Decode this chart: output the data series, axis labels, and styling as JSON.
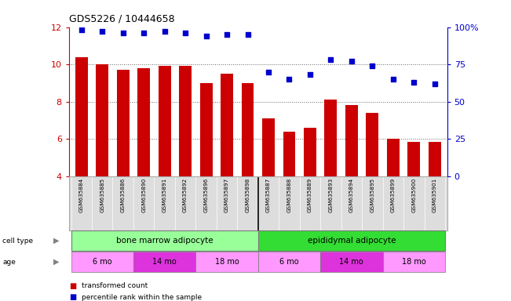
{
  "title": "GDS5226 / 10444658",
  "samples": [
    "GSM635884",
    "GSM635885",
    "GSM635886",
    "GSM635890",
    "GSM635891",
    "GSM635892",
    "GSM635896",
    "GSM635897",
    "GSM635898",
    "GSM635887",
    "GSM635888",
    "GSM635889",
    "GSM635893",
    "GSM635894",
    "GSM635895",
    "GSM635899",
    "GSM635900",
    "GSM635901"
  ],
  "bar_values": [
    10.4,
    10.0,
    9.7,
    9.8,
    9.9,
    9.9,
    9.0,
    9.5,
    9.0,
    7.1,
    6.4,
    6.6,
    8.1,
    7.8,
    7.4,
    6.0,
    5.85,
    5.85
  ],
  "dot_values": [
    98,
    97,
    96,
    96,
    97,
    96,
    94,
    95,
    95,
    70,
    65,
    68,
    78,
    77,
    74,
    65,
    63,
    62
  ],
  "bar_color": "#cc0000",
  "dot_color": "#0000cc",
  "ylim_left": [
    4,
    12
  ],
  "ylim_right": [
    0,
    100
  ],
  "yticks_left": [
    4,
    6,
    8,
    10,
    12
  ],
  "yticks_right": [
    0,
    25,
    50,
    75,
    100
  ],
  "yticklabels_right": [
    "0",
    "25",
    "50",
    "75",
    "100%"
  ],
  "cell_type_labels": [
    "bone marrow adipocyte",
    "epididymal adipocyte"
  ],
  "cell_type_colors": [
    "#99ff99",
    "#33dd33"
  ],
  "age_labels": [
    "6 mo",
    "14 mo",
    "18 mo",
    "6 mo",
    "14 mo",
    "18 mo"
  ],
  "age_colors_alt": [
    "#ff99ff",
    "#dd33dd"
  ],
  "legend_items": [
    "transformed count",
    "percentile rank within the sample"
  ],
  "legend_colors": [
    "#cc0000",
    "#0000cc"
  ],
  "background_color": "#ffffff",
  "grid_color": "#666666",
  "sample_bg": "#dddddd"
}
